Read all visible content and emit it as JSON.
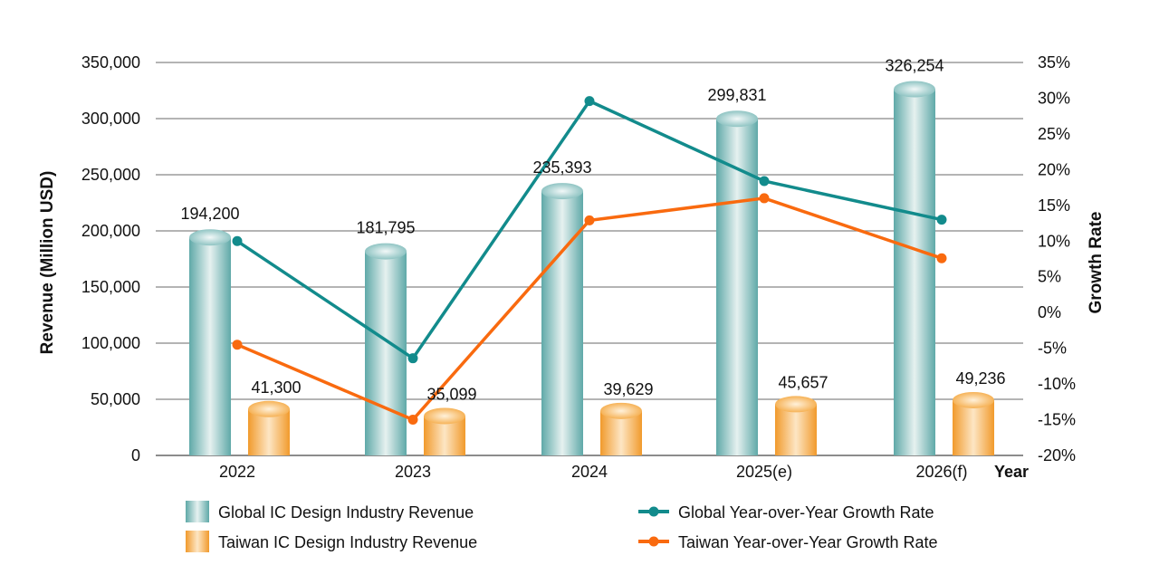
{
  "chart_data": {
    "type": "bar",
    "categories": [
      "2022",
      "2023",
      "2024",
      "2025(e)",
      "2026(f)"
    ],
    "xlabel": "Year",
    "ylabel": "Revenue (Million USD)",
    "y2label": "Growth Rate",
    "ylim": [
      0,
      350000
    ],
    "yticks": [
      "0",
      "50,000",
      "100,000",
      "150,000",
      "200,000",
      "250,000",
      "300,000",
      "350,000"
    ],
    "y2lim": [
      -20,
      35
    ],
    "y2ticks": [
      "-20%",
      "-15%",
      "-10%",
      "-5%",
      "0%",
      "5%",
      "10%",
      "15%",
      "20%",
      "25%",
      "30%",
      "35%"
    ],
    "grid": true,
    "legend_position": "bottom",
    "series": [
      {
        "name": "Global IC Design Industry Revenue",
        "kind": "bar",
        "axis": "left",
        "color": "#6bb5b5",
        "values": [
          194200,
          181795,
          235393,
          299831,
          326254
        ],
        "labels": [
          "194,200",
          "181,795",
          "235,393",
          "299,831",
          "326,254"
        ]
      },
      {
        "name": "Taiwan IC Design Industry Revenue",
        "kind": "bar",
        "axis": "left",
        "color": "#f5a945",
        "values": [
          41300,
          35099,
          39629,
          45657,
          49236
        ],
        "labels": [
          "41,300",
          "35,099",
          "39,629",
          "45,657",
          "49,236"
        ]
      },
      {
        "name": "Global Year-over-Year Growth Rate",
        "kind": "line",
        "axis": "right",
        "color": "#128b8c",
        "values": [
          10.0,
          -6.4,
          29.6,
          18.4,
          13.0
        ]
      },
      {
        "name": "Taiwan Year-over-Year Growth Rate",
        "kind": "line",
        "axis": "right",
        "color": "#f96a0f",
        "values": [
          -4.5,
          -15.0,
          12.9,
          16.0,
          7.6
        ]
      }
    ]
  }
}
